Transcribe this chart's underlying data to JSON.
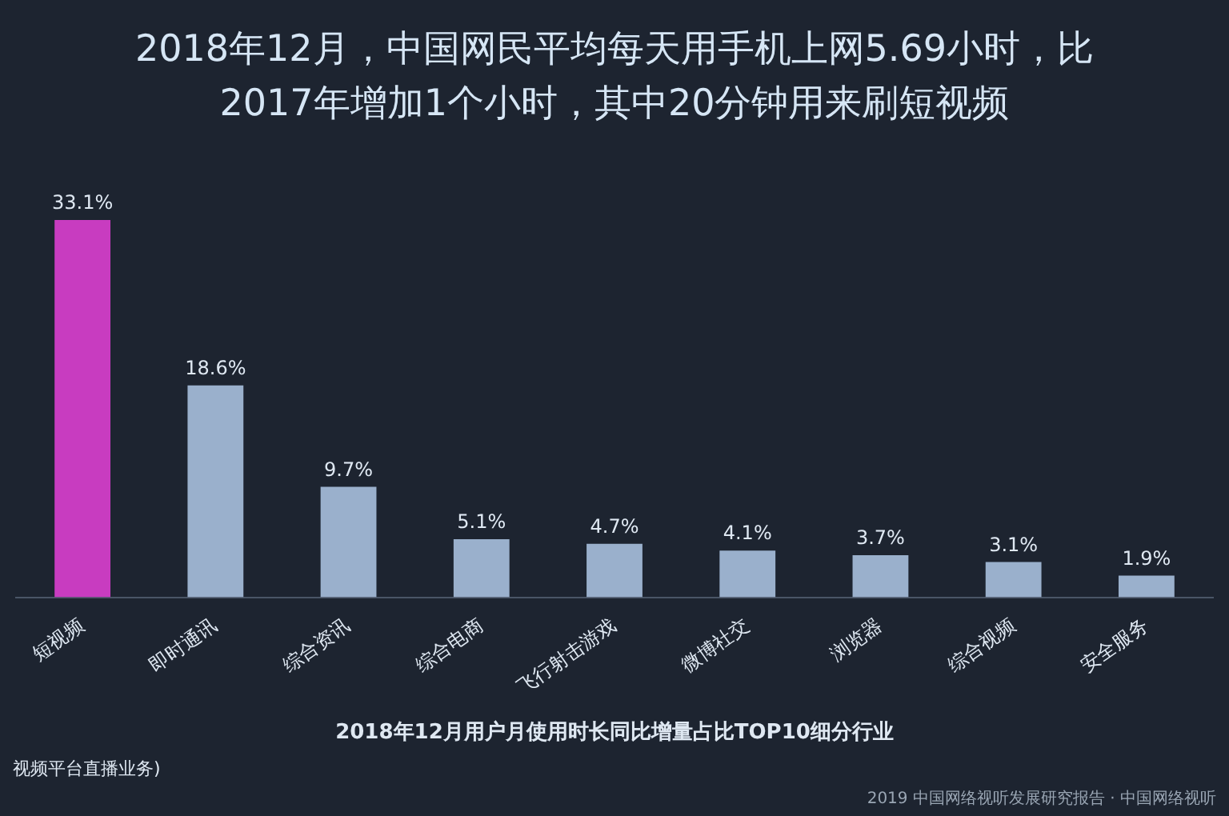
{
  "chart_data": {
    "type": "bar",
    "title": "2018年12月，中国网民平均每天用手机上网5.69小时，比2017年增加1个小时，其中20分钟用来刷短视频",
    "xlabel": "2018年12月用户月使用时长同比增量占比TOP10细分行业",
    "categories": [
      "短视频",
      "即时通讯",
      "综合资讯",
      "综合电商",
      "飞行射击游戏",
      "微博社交",
      "浏览器",
      "综合视频",
      "安全服务"
    ],
    "values": [
      33.1,
      18.6,
      9.7,
      5.1,
      4.7,
      4.1,
      3.7,
      3.1,
      1.9
    ],
    "value_labels": [
      "33.1%",
      "18.6%",
      "9.7%",
      "5.1%",
      "4.7%",
      "4.1%",
      "3.7%",
      "3.1%",
      "1.9%"
    ],
    "colors": [
      "#c83cc0",
      "#9ab0cc",
      "#9ab0cc",
      "#9ab0cc",
      "#9ab0cc",
      "#9ab0cc",
      "#9ab0cc",
      "#9ab0cc",
      "#9ab0cc"
    ],
    "grid": false,
    "legend": false,
    "annotations": [
      "视频平台直播业务)",
      "2019 中国网络视听发展研究报告 · 中国网络视听"
    ]
  }
}
